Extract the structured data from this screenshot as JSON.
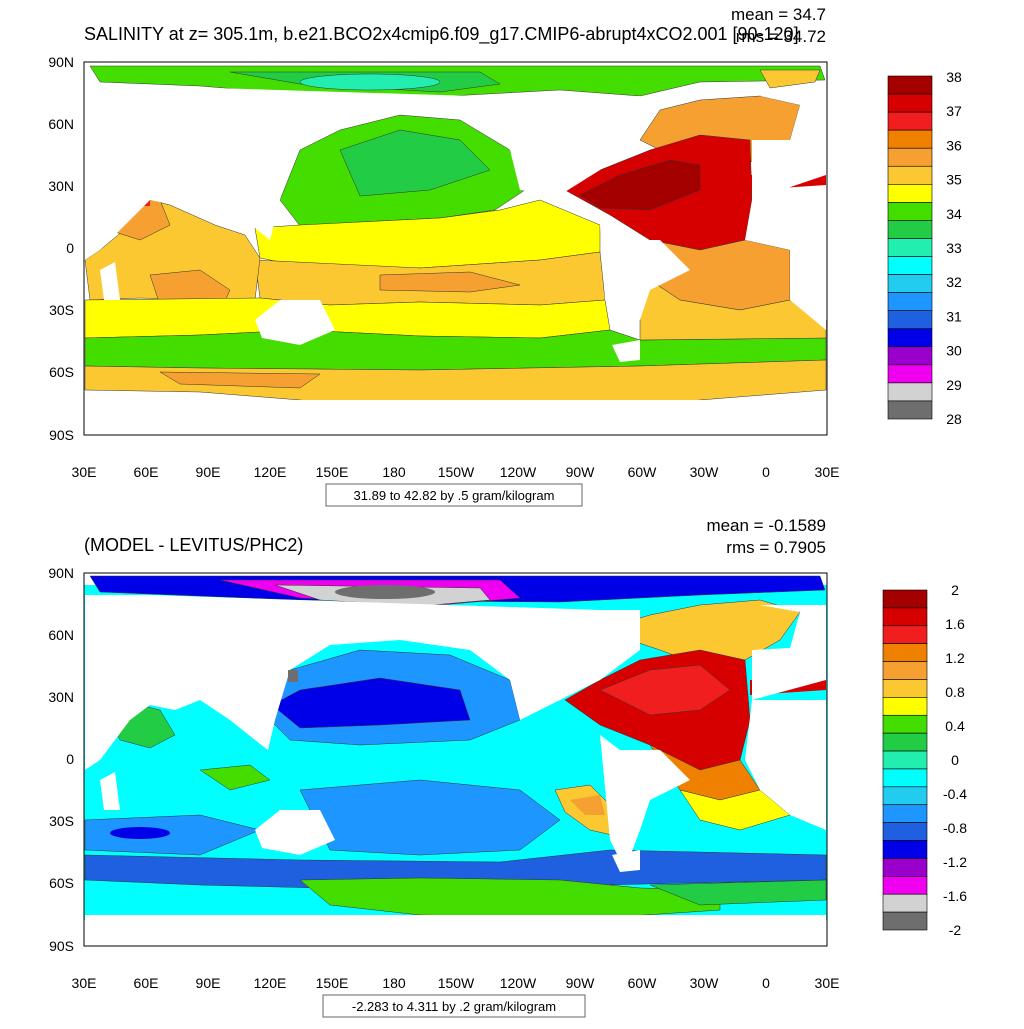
{
  "panels": [
    {
      "title": "SALINITY at z= 305.1m, b.e21.BCO2x4cmip6.f09_g17.CMIP6-abrupt4xCO2.001 [90-120]",
      "mean_label": "mean = 34.7",
      "rms_label": "rms = 34.72",
      "contour_info": "31.89 to 42.82 by .5 gram/kilogram",
      "lat_ticks": [
        "90N",
        "60N",
        "30N",
        "0",
        "30S",
        "60S",
        "90S"
      ],
      "lon_ticks": [
        "30E",
        "60E",
        "90E",
        "120E",
        "150E",
        "180",
        "150W",
        "120W",
        "90W",
        "60W",
        "30W",
        "0",
        "30E"
      ],
      "colorbar": {
        "labels": [
          "38",
          "37",
          "36",
          "35",
          "34",
          "33",
          "32",
          "31",
          "30",
          "29",
          "28"
        ],
        "colors": [
          "#a50000",
          "#d70000",
          "#f01e1e",
          "#f08000",
          "#f5a030",
          "#fbc832",
          "#ffff00",
          "#44dd00",
          "#22cc44",
          "#22eeb0",
          "#00ffff",
          "#22ccee",
          "#1e96ff",
          "#1e60e0",
          "#0000e8",
          "#9a00cc",
          "#f000f0",
          "#d2d2d2",
          "#6e6e6e"
        ]
      }
    },
    {
      "title": "(MODEL - LEVITUS/PHC2)",
      "mean_label": "mean = -0.1589",
      "rms_label": "rms = 0.7905",
      "contour_info": "-2.283 to 4.311 by .2 gram/kilogram",
      "lat_ticks": [
        "90N",
        "60N",
        "30N",
        "0",
        "30S",
        "60S",
        "90S"
      ],
      "lon_ticks": [
        "30E",
        "60E",
        "90E",
        "120E",
        "150E",
        "180",
        "150W",
        "120W",
        "90W",
        "60W",
        "30W",
        "0",
        "30E"
      ],
      "colorbar": {
        "labels": [
          "2",
          "1.6",
          "1.2",
          "0.8",
          "0.4",
          "0",
          "-0.4",
          "-0.8",
          "-1.2",
          "-1.6",
          "-2"
        ],
        "colors": [
          "#a50000",
          "#d70000",
          "#f01e1e",
          "#f08000",
          "#f5a030",
          "#fbc832",
          "#ffff00",
          "#44dd00",
          "#22cc44",
          "#22eeb0",
          "#00ffff",
          "#22ccee",
          "#1e96ff",
          "#1e60e0",
          "#0000e8",
          "#9a00cc",
          "#f000f0",
          "#d2d2d2",
          "#6e6e6e"
        ]
      }
    }
  ]
}
